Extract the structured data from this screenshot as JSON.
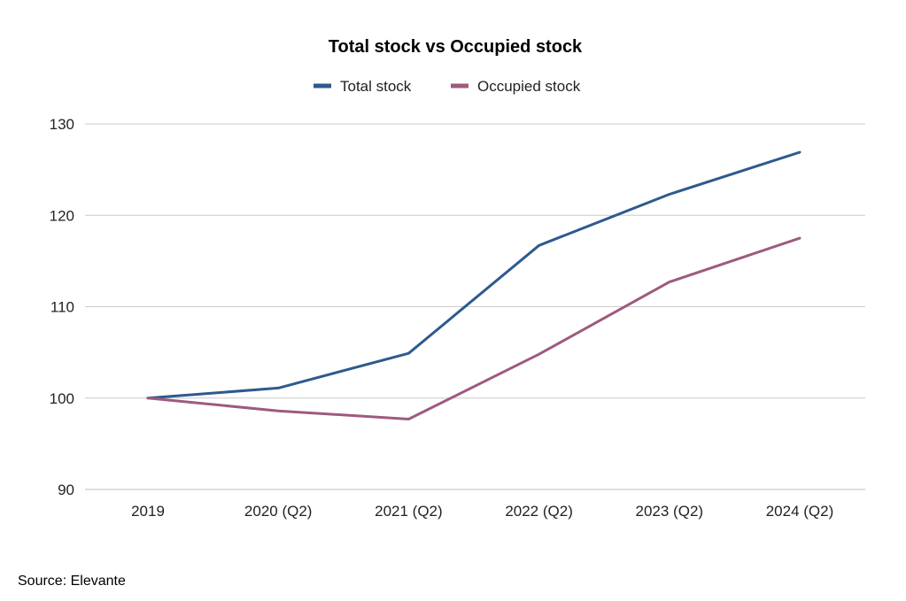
{
  "chart_data": {
    "type": "line",
    "title": "Total stock vs Occupied stock",
    "categories": [
      "2019",
      "2020 (Q2)",
      "2021 (Q2)",
      "2022 (Q2)",
      "2023 (Q2)",
      "2024 (Q2)"
    ],
    "series": [
      {
        "name": "Total stock",
        "color": "#2e5a8c",
        "values": [
          100,
          101.1,
          104.9,
          116.7,
          122.3,
          126.9
        ]
      },
      {
        "name": "Occupied stock",
        "color": "#9e5a7e",
        "values": [
          100,
          98.6,
          97.7,
          104.8,
          112.7,
          117.5
        ]
      }
    ],
    "ylim": [
      90,
      130
    ],
    "yticks": [
      "90",
      "100",
      "110",
      "120",
      "130"
    ],
    "grid": true,
    "legend_position": "top-center"
  },
  "source": "Source: Elevante",
  "colors": {
    "gridline": "#cccccc",
    "axis_line": "#bdbdbd"
  }
}
